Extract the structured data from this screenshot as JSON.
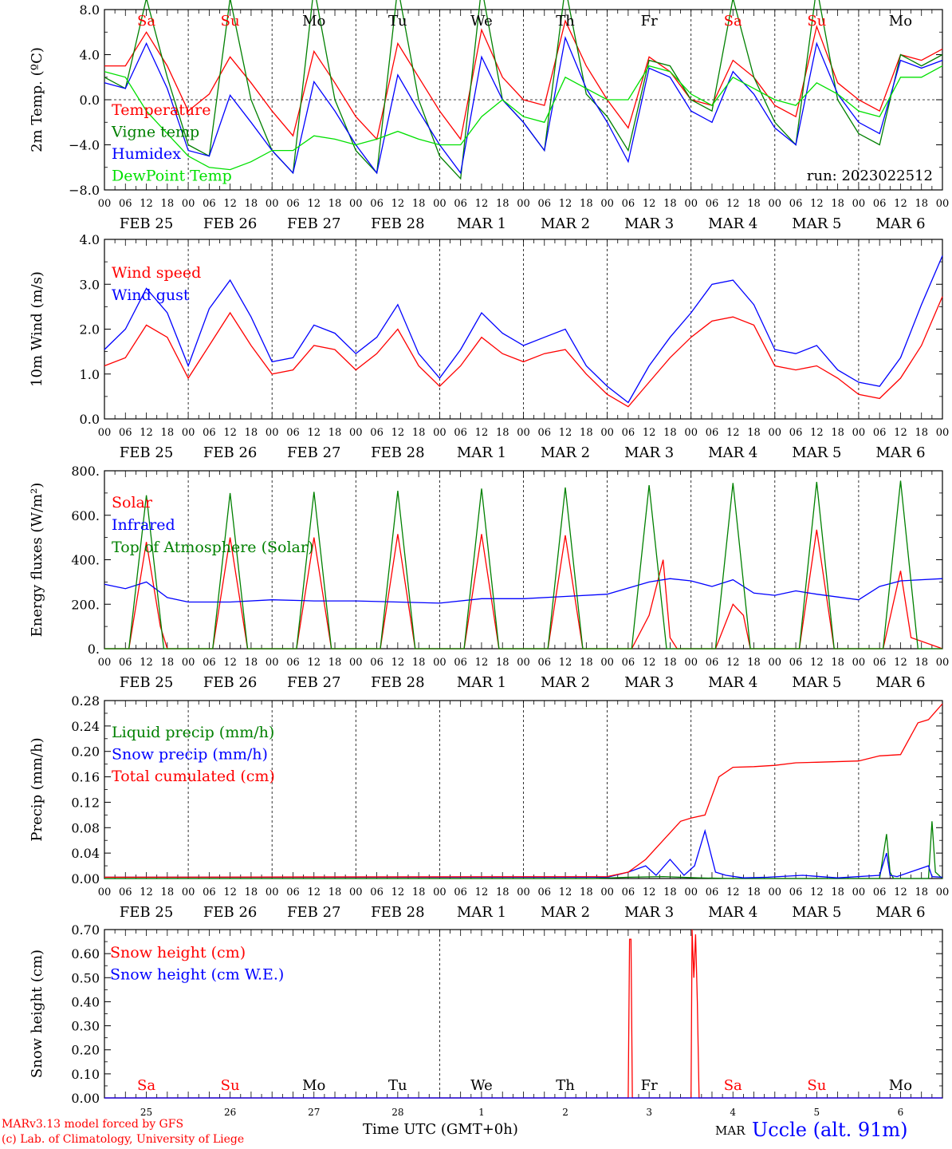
{
  "colors": {
    "red": "#ff0000",
    "green": "#008000",
    "blue": "#0000ff",
    "lightgreen": "#00e000",
    "black": "#000000"
  },
  "run_label": "run: 2023022512",
  "hour_ticks": [
    "00",
    "06",
    "12",
    "18"
  ],
  "end_tick": "00",
  "date_labels": [
    "FEB 25",
    "FEB 26",
    "FEB 27",
    "FEB 28",
    "MAR  1",
    "MAR  2",
    "MAR  3",
    "MAR  4",
    "MAR  5",
    "MAR  6"
  ],
  "weekdays": [
    {
      "label": "Sa",
      "weekend": true
    },
    {
      "label": "Su",
      "weekend": true
    },
    {
      "label": "Mo",
      "weekend": false
    },
    {
      "label": "Tu",
      "weekend": false
    },
    {
      "label": "We",
      "weekend": false
    },
    {
      "label": "Th",
      "weekend": false
    },
    {
      "label": "Fr",
      "weekend": false
    },
    {
      "label": "Sa",
      "weekend": true
    },
    {
      "label": "Su",
      "weekend": true
    },
    {
      "label": "Mo",
      "weekend": false
    }
  ],
  "day_numbers": [
    "25",
    "26",
    "27",
    "28",
    "1",
    "2",
    "3",
    "4",
    "5",
    "6"
  ],
  "footer": {
    "model": "MARv3.13 model forced by GFS",
    "lab": "(c) Lab. of Climatology, University of Liege",
    "xlabel": "Time UTC (GMT+0h)",
    "month": "MAR",
    "station": "Uccle (alt. 91m)"
  },
  "chart_data": [
    {
      "type": "line",
      "ylabel": "2m Temp. (ºC)",
      "ylim": [
        -8,
        8
      ],
      "yticks": [
        "8.0",
        "4.0",
        "0.0",
        "−4.0",
        "−8.0"
      ],
      "zero_line": true,
      "x_unit": "hours since 2023-02-25 00 UTC",
      "series": [
        {
          "name": "Temperature",
          "color": "red",
          "x": [
            0,
            6,
            12,
            18,
            24,
            30,
            36,
            42,
            48,
            54,
            60,
            66,
            72,
            78,
            84,
            90,
            96,
            102,
            108,
            114,
            120,
            126,
            132,
            138,
            144,
            150,
            156,
            162,
            168,
            174,
            180,
            186,
            192,
            198,
            204,
            210,
            216,
            222,
            228,
            234,
            240
          ],
          "values": [
            3.0,
            3.0,
            6.0,
            3.0,
            -1.0,
            0.5,
            3.8,
            1.5,
            -1.0,
            -3.2,
            4.3,
            1.5,
            -1.5,
            -3.5,
            5.0,
            2.0,
            -1.0,
            -3.5,
            6.2,
            2.0,
            0.0,
            -0.5,
            7.0,
            3.0,
            0.0,
            -2.5,
            3.8,
            2.5,
            0.0,
            -0.5,
            3.5,
            2.0,
            -0.5,
            -1.5,
            6.5,
            1.5,
            0.0,
            -1.0,
            4.0,
            3.5,
            4.5
          ]
        },
        {
          "name": "Vigne temp",
          "color": "green",
          "x": [
            0,
            6,
            12,
            18,
            24,
            30,
            36,
            42,
            48,
            54,
            60,
            66,
            72,
            78,
            84,
            90,
            96,
            102,
            108,
            114,
            120,
            126,
            132,
            138,
            144,
            150,
            156,
            162,
            168,
            174,
            180,
            186,
            192,
            198,
            204,
            210,
            216,
            222,
            228,
            234,
            240
          ],
          "values": [
            2.0,
            1.0,
            9.0,
            2.0,
            -4.0,
            -5.0,
            9.0,
            0.0,
            -4.5,
            -6.5,
            10.0,
            0.0,
            -4.5,
            -6.5,
            10.0,
            0.0,
            -5.0,
            -7.0,
            10.0,
            0.0,
            -2.0,
            -4.5,
            10.0,
            0.5,
            -1.5,
            -4.5,
            3.5,
            3.0,
            0.0,
            -1.0,
            9.0,
            2.0,
            -2.0,
            -4.0,
            10.0,
            0.0,
            -3.0,
            -4.0,
            4.0,
            3.0,
            4.0
          ]
        },
        {
          "name": "Humidex",
          "color": "blue",
          "x": [
            0,
            6,
            12,
            18,
            24,
            30,
            36,
            42,
            48,
            54,
            60,
            66,
            72,
            78,
            84,
            90,
            96,
            102,
            108,
            114,
            120,
            126,
            132,
            138,
            144,
            150,
            156,
            162,
            168,
            174,
            180,
            186,
            192,
            198,
            204,
            210,
            216,
            222,
            228,
            234,
            240
          ],
          "values": [
            1.5,
            1.0,
            5.0,
            1.0,
            -4.5,
            -5.0,
            0.4,
            -2.0,
            -4.5,
            -6.5,
            1.6,
            -1.0,
            -4.0,
            -6.5,
            2.2,
            -1.0,
            -4.0,
            -6.5,
            3.8,
            0.0,
            -2.0,
            -4.5,
            5.5,
            1.0,
            -2.0,
            -5.5,
            2.8,
            2.0,
            -1.0,
            -2.0,
            2.5,
            0.5,
            -2.5,
            -4.0,
            5.0,
            0.5,
            -2.0,
            -3.0,
            3.5,
            2.8,
            3.5
          ]
        },
        {
          "name": "DewPoint Temp",
          "color": "lightgreen",
          "x": [
            0,
            6,
            12,
            18,
            24,
            30,
            36,
            42,
            48,
            54,
            60,
            66,
            72,
            78,
            84,
            90,
            96,
            102,
            108,
            114,
            120,
            126,
            132,
            138,
            144,
            150,
            156,
            162,
            168,
            174,
            180,
            186,
            192,
            198,
            204,
            210,
            216,
            222,
            228,
            234,
            240
          ],
          "values": [
            2.5,
            2.0,
            -1.0,
            -3.0,
            -5.0,
            -6.0,
            -6.2,
            -5.5,
            -4.5,
            -4.5,
            -3.2,
            -3.5,
            -4.0,
            -3.5,
            -2.8,
            -3.5,
            -4.0,
            -4.0,
            -1.5,
            0.0,
            -1.5,
            -2.0,
            2.0,
            1.0,
            0.0,
            0.0,
            3.0,
            2.5,
            0.5,
            -0.5,
            2.0,
            1.0,
            0.0,
            -0.5,
            1.5,
            0.5,
            -1.0,
            -1.5,
            2.0,
            2.0,
            3.0
          ]
        }
      ]
    },
    {
      "type": "line",
      "ylabel": "10m Wind (m/s)",
      "ylim": [
        0,
        4.4
      ],
      "yticks": [
        "4.0",
        "3.0",
        "2.0",
        "1.0",
        "0.0"
      ],
      "x_unit": "hours since 2023-02-25 00 UTC",
      "series": [
        {
          "name": "Wind speed",
          "color": "red",
          "x": [
            0,
            6,
            12,
            18,
            24,
            30,
            36,
            42,
            48,
            54,
            60,
            66,
            72,
            78,
            84,
            90,
            96,
            102,
            108,
            114,
            120,
            126,
            132,
            138,
            144,
            150,
            156,
            162,
            168,
            174,
            180,
            186,
            192,
            198,
            204,
            210,
            216,
            222,
            228,
            234,
            240
          ],
          "values": [
            1.3,
            1.5,
            2.3,
            2.0,
            1.0,
            1.8,
            2.6,
            1.8,
            1.1,
            1.2,
            1.8,
            1.7,
            1.2,
            1.6,
            2.2,
            1.3,
            0.8,
            1.3,
            2.0,
            1.6,
            1.4,
            1.6,
            1.7,
            1.1,
            0.6,
            0.3,
            0.9,
            1.5,
            2.0,
            2.4,
            2.5,
            2.3,
            1.3,
            1.2,
            1.3,
            1.0,
            0.6,
            0.5,
            1.0,
            1.8,
            3.0
          ]
        },
        {
          "name": "Wind gust",
          "color": "blue",
          "x": [
            0,
            6,
            12,
            18,
            24,
            30,
            36,
            42,
            48,
            54,
            60,
            66,
            72,
            78,
            84,
            90,
            96,
            102,
            108,
            114,
            120,
            126,
            132,
            138,
            144,
            150,
            156,
            162,
            168,
            174,
            180,
            186,
            192,
            198,
            204,
            210,
            216,
            222,
            228,
            234,
            240
          ],
          "values": [
            1.7,
            2.2,
            3.2,
            2.6,
            1.3,
            2.7,
            3.4,
            2.5,
            1.4,
            1.5,
            2.3,
            2.1,
            1.6,
            2.0,
            2.8,
            1.6,
            1.0,
            1.7,
            2.6,
            2.1,
            1.8,
            2.0,
            2.2,
            1.3,
            0.8,
            0.4,
            1.3,
            2.0,
            2.6,
            3.3,
            3.4,
            2.8,
            1.7,
            1.6,
            1.8,
            1.2,
            0.9,
            0.8,
            1.5,
            2.8,
            4.0
          ]
        }
      ]
    },
    {
      "type": "line",
      "ylabel": "Energy fluxes (W/m²)",
      "ylim": [
        0,
        800
      ],
      "yticks": [
        "800.",
        "600.",
        "400.",
        "200.",
        "0."
      ],
      "x_unit": "hours since 2023-02-25 00 UTC",
      "series": [
        {
          "name": "Solar",
          "color": "red",
          "x": [
            0,
            7,
            12,
            16,
            18,
            31,
            36,
            41,
            55,
            60,
            65,
            79,
            84,
            89,
            103,
            108,
            113,
            127,
            132,
            137,
            151,
            156,
            160,
            162,
            164,
            175,
            180,
            183,
            185,
            199,
            204,
            209,
            223,
            228,
            231,
            240
          ],
          "values": [
            0,
            0,
            480,
            100,
            0,
            0,
            500,
            0,
            0,
            500,
            0,
            0,
            515,
            0,
            0,
            515,
            0,
            0,
            510,
            0,
            0,
            150,
            400,
            50,
            0,
            0,
            200,
            150,
            0,
            0,
            535,
            0,
            0,
            350,
            50,
            0
          ]
        },
        {
          "name": "Infrared",
          "color": "blue",
          "x": [
            0,
            6,
            12,
            18,
            24,
            36,
            48,
            60,
            72,
            84,
            96,
            108,
            120,
            132,
            144,
            156,
            162,
            168,
            174,
            180,
            186,
            192,
            198,
            204,
            216,
            222,
            228,
            240
          ],
          "values": [
            290,
            270,
            300,
            230,
            210,
            210,
            220,
            215,
            215,
            210,
            205,
            225,
            225,
            235,
            245,
            300,
            315,
            305,
            280,
            310,
            250,
            240,
            260,
            245,
            220,
            280,
            305,
            315
          ]
        },
        {
          "name": "Top of Atmosphere (Solar)",
          "color": "green",
          "x": [
            0,
            7,
            12,
            17,
            31,
            36,
            41,
            55,
            60,
            65,
            79,
            84,
            89,
            103,
            108,
            113,
            127,
            132,
            137,
            151,
            156,
            161,
            175,
            180,
            185,
            199,
            204,
            209,
            223,
            228,
            233,
            240
          ],
          "values": [
            0,
            0,
            690,
            0,
            0,
            700,
            0,
            0,
            705,
            0,
            0,
            710,
            0,
            0,
            720,
            0,
            0,
            725,
            0,
            0,
            735,
            0,
            0,
            745,
            0,
            0,
            750,
            0,
            0,
            755,
            0,
            0
          ]
        }
      ]
    },
    {
      "type": "line",
      "ylabel": "Precip (mm/h)",
      "ylim": [
        0,
        0.28
      ],
      "yticks": [
        "0.28",
        "0.24",
        "0.20",
        "0.16",
        "0.12",
        "0.08",
        "0.04",
        "0.00"
      ],
      "x_unit": "hours since 2023-02-25 00 UTC",
      "series": [
        {
          "name": "Liquid precip (mm/h)",
          "color": "green",
          "x": [
            0,
            140,
            150,
            160,
            170,
            180,
            222,
            224,
            225,
            226,
            236,
            237,
            238,
            240
          ],
          "values": [
            0,
            0,
            0.002,
            0.003,
            0.001,
            0,
            0,
            0.07,
            0.01,
            0,
            0,
            0.09,
            0.01,
            0
          ]
        },
        {
          "name": "Snow precip (mm/h)",
          "color": "blue",
          "x": [
            0,
            144,
            150,
            155,
            158,
            162,
            166,
            169,
            172,
            175,
            178,
            183,
            190,
            200,
            210,
            222,
            224,
            225,
            227,
            236,
            237,
            240
          ],
          "values": [
            0.002,
            0.002,
            0.01,
            0.02,
            0.005,
            0.03,
            0.005,
            0.02,
            0.075,
            0.01,
            0.005,
            0.001,
            0.002,
            0.005,
            0.001,
            0.005,
            0.04,
            0.005,
            0.003,
            0.02,
            0.003,
            0.002
          ]
        },
        {
          "name": "Total cumulated (cm)",
          "color": "red",
          "x": [
            0,
            144,
            150,
            155,
            160,
            165,
            168,
            172,
            176,
            180,
            186,
            192,
            198,
            204,
            216,
            222,
            228,
            233,
            236,
            240
          ],
          "values": [
            0.002,
            0.003,
            0.01,
            0.03,
            0.06,
            0.09,
            0.095,
            0.1,
            0.16,
            0.175,
            0.176,
            0.178,
            0.182,
            0.183,
            0.185,
            0.193,
            0.195,
            0.245,
            0.25,
            0.275
          ]
        }
      ]
    },
    {
      "type": "line",
      "ylabel": "Snow height (cm)",
      "ylim": [
        0,
        0.7
      ],
      "yticks": [
        "0.70",
        "0.60",
        "0.50",
        "0.40",
        "0.30",
        "0.20",
        "0.10",
        "0.00"
      ],
      "x_unit": "hours since 2023-02-25 00 UTC",
      "series": [
        {
          "name": "Snow height (cm)",
          "color": "red",
          "x": [
            0,
            150,
            150.4,
            150.8,
            151.2,
            168,
            168.3,
            168.8,
            169.3,
            169.8,
            170.3,
            240
          ],
          "values": [
            0,
            0,
            0.66,
            0.66,
            0,
            0,
            0.7,
            0.5,
            0.68,
            0.4,
            0,
            0
          ]
        },
        {
          "name": "Snow height (cm W.E.)",
          "color": "blue",
          "x": [
            0,
            240
          ],
          "values": [
            0,
            0
          ]
        }
      ]
    }
  ]
}
